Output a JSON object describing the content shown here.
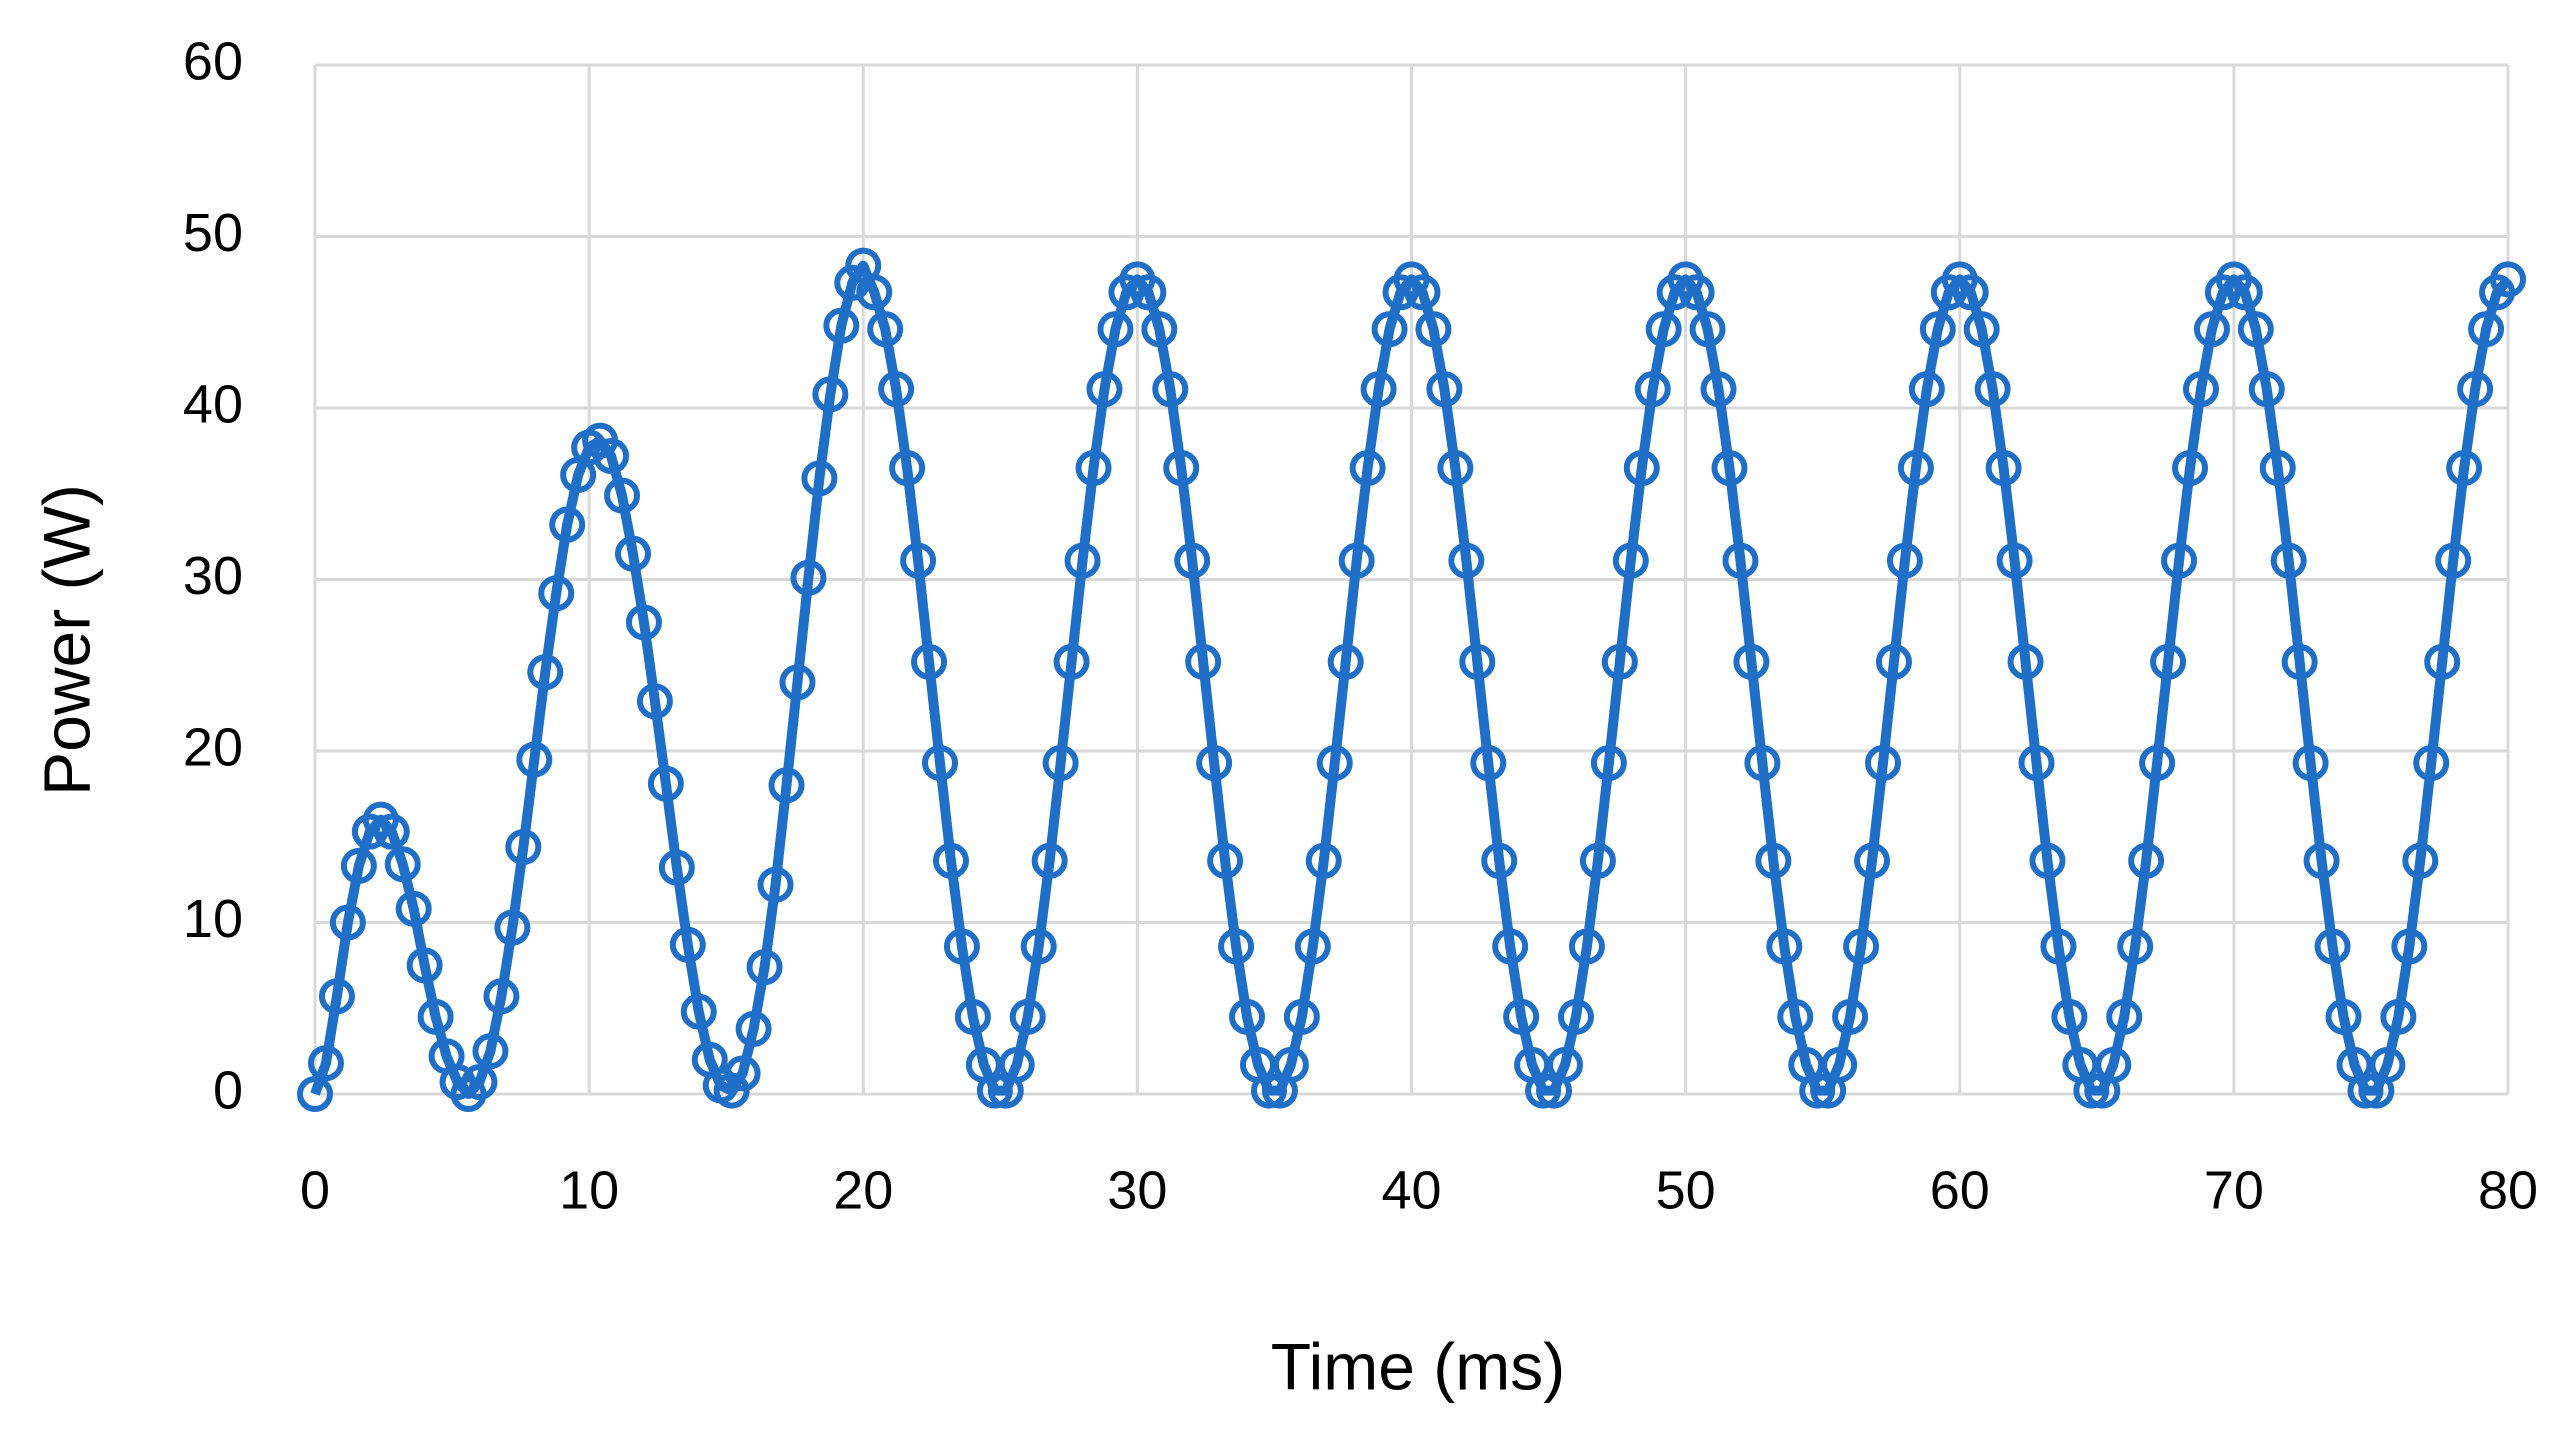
{
  "chart_data": {
    "type": "line",
    "xlabel": "Time (ms)",
    "ylabel": "Power (W)",
    "color": "#1f6fc8",
    "grid": true,
    "markers": "circle",
    "xlim": [
      0,
      80
    ],
    "xticks": [
      0,
      10,
      20,
      30,
      40,
      50,
      60,
      70,
      80
    ],
    "ylim": [
      0,
      60
    ],
    "yticks": [
      0,
      10,
      20,
      30,
      40,
      50,
      60
    ],
    "x": [
      0,
      0.4,
      0.8,
      1.2,
      1.6,
      2,
      2.4,
      2.8,
      3.2,
      3.6,
      4,
      4.4,
      4.8,
      5.2,
      5.6,
      6,
      6.4,
      6.8,
      7.2,
      7.6,
      8,
      8.4,
      8.8,
      9.2,
      9.6,
      10,
      10.4,
      10.8,
      11.2,
      11.6,
      12,
      12.4,
      12.8,
      13.2,
      13.6,
      14,
      14.4,
      14.8,
      15.2,
      15.6,
      16,
      16.4,
      16.8,
      17.2,
      17.6,
      18,
      18.4,
      18.8,
      19.2,
      19.6,
      20,
      20.4,
      20.8,
      21.2,
      21.6,
      22,
      22.4,
      22.8,
      23.2,
      23.6,
      24,
      24.4,
      24.8,
      25.2,
      25.6,
      26,
      26.4,
      26.8,
      27.2,
      27.6,
      28,
      28.4,
      28.8,
      29.2,
      29.6,
      30,
      30.4,
      30.8,
      31.2,
      31.6,
      32,
      32.4,
      32.8,
      33.2,
      33.6,
      34,
      34.4,
      34.8,
      35.2,
      35.6,
      36,
      36.4,
      36.8,
      37.2,
      37.6,
      38,
      38.4,
      38.8,
      39.2,
      39.6,
      40,
      40.4,
      40.8,
      41.2,
      41.6,
      42,
      42.4,
      42.8,
      43.2,
      43.6,
      44,
      44.4,
      44.8,
      45.2,
      45.6,
      46,
      46.4,
      46.8,
      47.2,
      47.6,
      48,
      48.4,
      48.8,
      49.2,
      49.6,
      50,
      50.4,
      50.8,
      51.2,
      51.6,
      52,
      52.4,
      52.8,
      53.2,
      53.6,
      54,
      54.4,
      54.8,
      55.2,
      55.6,
      56,
      56.4,
      56.8,
      57.2,
      57.6,
      58,
      58.4,
      58.8,
      59.2,
      59.6,
      60,
      60.4,
      60.8,
      61.2,
      61.6,
      62,
      62.4,
      62.8,
      63.2,
      63.6,
      64,
      64.4,
      64.8,
      65.2,
      65.6,
      66,
      66.4,
      66.8,
      67.2,
      67.6,
      68,
      68.4,
      68.8,
      69.2,
      69.6,
      70,
      70.4,
      70.8,
      71.2,
      71.6,
      72,
      72.4,
      72.8,
      73.2,
      73.6,
      74,
      74.4,
      74.8,
      75.2,
      75.6,
      76,
      76.4,
      76.8,
      77.2,
      77.6,
      78,
      78.4,
      78.8,
      79.2,
      79.6,
      80
    ],
    "values": [
      0,
      1.8,
      5.7,
      10,
      13.3,
      15.3,
      16,
      15.3,
      13.4,
      10.8,
      7.5,
      4.5,
      2.2,
      0.7,
      0,
      0.7,
      2.5,
      5.7,
      9.7,
      14.4,
      19.5,
      24.6,
      29.2,
      33.2,
      36.1,
      37.7,
      38.1,
      37.2,
      34.9,
      31.5,
      27.5,
      22.9,
      18.1,
      13.2,
      8.7,
      4.8,
      2,
      0.5,
      0.2,
      1.2,
      3.8,
      7.4,
      12.2,
      18,
      24,
      30.1,
      35.9,
      40.8,
      44.8,
      47.3,
      48.3,
      46.75,
      44.6,
      41.1,
      36.5,
      31.1,
      25.2,
      19.3,
      13.6,
      8.6,
      4.5,
      1.7,
      0.2,
      0.2,
      1.7,
      4.5,
      8.6,
      13.6,
      19.3,
      25.2,
      31.1,
      36.5,
      41.1,
      44.6,
      46.75,
      47.5,
      46.75,
      44.6,
      41.1,
      36.5,
      31.1,
      25.2,
      19.3,
      13.6,
      8.6,
      4.5,
      1.7,
      0.2,
      0.2,
      1.7,
      4.5,
      8.6,
      13.6,
      19.3,
      25.2,
      31.1,
      36.5,
      41.1,
      44.6,
      46.75,
      47.5,
      46.75,
      44.6,
      41.1,
      36.5,
      31.1,
      25.2,
      19.3,
      13.6,
      8.6,
      4.5,
      1.7,
      0.2,
      0.2,
      1.7,
      4.5,
      8.6,
      13.6,
      19.3,
      25.2,
      31.1,
      36.5,
      41.1,
      44.6,
      46.75,
      47.5,
      46.75,
      44.6,
      41.1,
      36.5,
      31.1,
      25.2,
      19.3,
      13.6,
      8.6,
      4.5,
      1.7,
      0.2,
      0.2,
      1.7,
      4.5,
      8.6,
      13.6,
      19.3,
      25.2,
      31.1,
      36.5,
      41.1,
      44.6,
      46.75,
      47.5,
      46.75,
      44.6,
      41.1,
      36.5,
      31.1,
      25.2,
      19.3,
      13.6,
      8.6,
      4.5,
      1.7,
      0.2,
      0.2,
      1.7,
      4.5,
      8.6,
      13.6,
      19.3,
      25.2,
      31.1,
      36.5,
      41.1,
      44.6,
      46.75,
      47.5,
      46.75,
      44.6,
      41.1,
      36.5,
      31.1,
      25.2,
      19.3,
      13.6,
      8.6,
      4.5,
      1.7,
      0.2,
      0.2,
      1.7,
      4.5,
      8.6,
      13.6,
      19.3,
      25.2,
      31.1,
      36.5,
      41.1,
      44.6,
      46.75,
      47.5
    ]
  }
}
